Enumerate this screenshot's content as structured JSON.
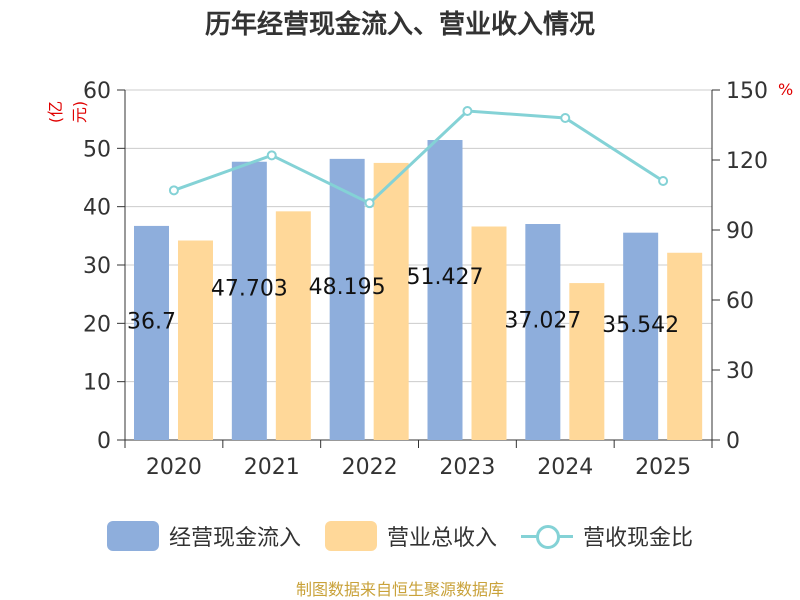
{
  "chart_data": {
    "type": "bar",
    "title": "历年经营现金流入、营业收入情况",
    "categories": [
      "2020",
      "2021",
      "2022",
      "2023",
      "2024",
      "2025"
    ],
    "series": [
      {
        "name": "经营现金流入",
        "values": [
          36.7,
          47.703,
          48.195,
          51.427,
          37.027,
          35.542
        ],
        "color": "#8eaedc",
        "axis": "left",
        "data_labels": [
          "36.7",
          "47.703",
          "48.195",
          "51.427",
          "37.027",
          "35.542"
        ]
      },
      {
        "name": "营业总收入",
        "values": [
          34.2,
          39.2,
          47.5,
          36.6,
          26.9,
          32.1
        ],
        "color": "#ffd899",
        "axis": "left"
      },
      {
        "name": "营收现金比",
        "type": "line",
        "values": [
          107,
          122,
          101.5,
          141,
          138,
          111
        ],
        "color": "#84d2d6",
        "axis": "right"
      }
    ],
    "ylabel": "(亿元)",
    "ylabel_right": "%",
    "ylim": [
      0,
      60
    ],
    "yticks": [
      "0",
      "10",
      "20",
      "30",
      "40",
      "50",
      "60"
    ],
    "ylim_right": [
      0,
      150
    ],
    "yticks_right": [
      "0",
      "30",
      "60",
      "90",
      "120",
      "150"
    ],
    "grid": true,
    "legend_position": "bottom",
    "source": "制图数据来自恒生聚源数据库"
  }
}
